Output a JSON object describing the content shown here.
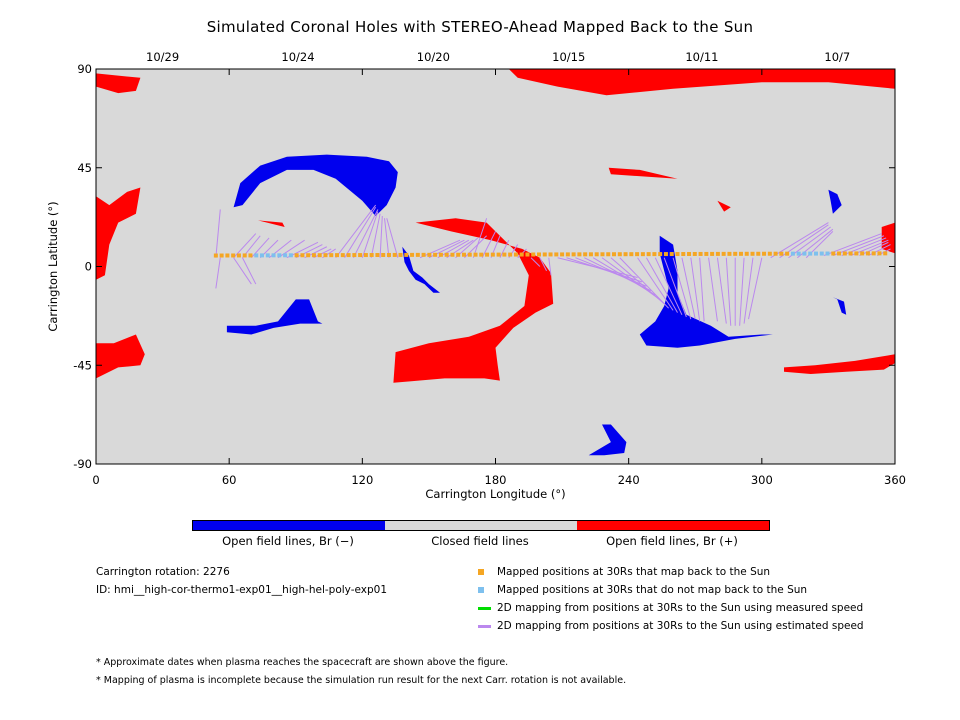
{
  "title": "Simulated Coronal Holes with STEREO-Ahead Mapped Back to the Sun",
  "colors": {
    "closed": "#d9d9d9",
    "open_positive": "#ff0000",
    "open_negative": "#0000ee",
    "mapped_back": "#f5a623",
    "not_mapped": "#7ec0ee",
    "measured_speed": "#00dd00",
    "estimated_speed": "#bb88ee"
  },
  "chart_data": {
    "type": "heatmap",
    "xlabel": "Carrington Longitude (°)",
    "ylabel": "Carrington Latitude (°)",
    "xlim": [
      0,
      360
    ],
    "ylim": [
      -90,
      90
    ],
    "x_ticks": [
      0,
      60,
      120,
      180,
      240,
      300,
      360
    ],
    "y_ticks": [
      90,
      45,
      0,
      -45,
      -90
    ],
    "top_axis": {
      "dates": [
        "10/29",
        "10/24",
        "10/20",
        "10/15",
        "10/11",
        "10/7"
      ],
      "longitudes": [
        30,
        91,
        152,
        213,
        273,
        334
      ]
    },
    "open_positive_regions": [
      [
        [
          0,
          88
        ],
        [
          20,
          86
        ],
        [
          18,
          80
        ],
        [
          10,
          79
        ],
        [
          0,
          82
        ]
      ],
      [
        [
          0,
          32
        ],
        [
          6,
          28
        ],
        [
          14,
          34
        ],
        [
          20,
          36
        ],
        [
          18,
          24
        ],
        [
          10,
          20
        ],
        [
          6,
          10
        ],
        [
          4,
          -4
        ],
        [
          0,
          -6
        ]
      ],
      [
        [
          0,
          -35
        ],
        [
          8,
          -35
        ],
        [
          18,
          -31
        ],
        [
          22,
          -40
        ],
        [
          20,
          -45
        ],
        [
          10,
          -46
        ],
        [
          0,
          -51
        ]
      ],
      [
        [
          186,
          90
        ],
        [
          360,
          90
        ],
        [
          360,
          81
        ],
        [
          330,
          84
        ],
        [
          300,
          84
        ],
        [
          260,
          81
        ],
        [
          230,
          78
        ],
        [
          208,
          82
        ],
        [
          190,
          86
        ]
      ],
      [
        [
          231,
          45
        ],
        [
          245,
          44
        ],
        [
          262,
          40
        ],
        [
          232,
          42
        ]
      ],
      [
        [
          280,
          30
        ],
        [
          286,
          27
        ],
        [
          283,
          25
        ]
      ],
      [
        [
          73,
          21
        ],
        [
          85,
          18
        ],
        [
          84,
          20
        ]
      ],
      [
        [
          144,
          20
        ],
        [
          162,
          22
        ],
        [
          176,
          20
        ],
        [
          182,
          14
        ],
        [
          190,
          6
        ],
        [
          195,
          -4
        ],
        [
          193,
          -18
        ],
        [
          182,
          -27
        ],
        [
          168,
          -32
        ],
        [
          150,
          -35
        ],
        [
          135,
          -39
        ],
        [
          134,
          -53
        ],
        [
          157,
          -51
        ],
        [
          175,
          -51
        ],
        [
          182,
          -52
        ],
        [
          181,
          -45
        ],
        [
          180,
          -37
        ],
        [
          188,
          -28
        ],
        [
          198,
          -21
        ],
        [
          206,
          -17
        ],
        [
          205,
          -3
        ],
        [
          200,
          4
        ],
        [
          192,
          8
        ],
        [
          178,
          12
        ],
        [
          160,
          16
        ]
      ],
      [
        [
          310,
          -48
        ],
        [
          322,
          -49
        ],
        [
          338,
          -48
        ],
        [
          355,
          -47
        ],
        [
          360,
          -44
        ],
        [
          360,
          -40
        ],
        [
          342,
          -43
        ],
        [
          324,
          -45
        ],
        [
          310,
          -46
        ]
      ],
      [
        [
          354,
          18
        ],
        [
          360,
          20
        ],
        [
          360,
          6
        ],
        [
          354,
          8
        ]
      ]
    ],
    "open_negative_regions": [
      [
        [
          62,
          27
        ],
        [
          65,
          38
        ],
        [
          74,
          46
        ],
        [
          86,
          50
        ],
        [
          104,
          51
        ],
        [
          122,
          50
        ],
        [
          132,
          48
        ],
        [
          136,
          43
        ],
        [
          135,
          36
        ],
        [
          131,
          28
        ],
        [
          126,
          23
        ],
        [
          120,
          30
        ],
        [
          108,
          40
        ],
        [
          98,
          44
        ],
        [
          86,
          44
        ],
        [
          74,
          38
        ],
        [
          66,
          28
        ]
      ],
      [
        [
          138,
          9
        ],
        [
          141,
          5
        ],
        [
          143,
          -2
        ],
        [
          147,
          -5
        ],
        [
          150,
          -8
        ],
        [
          155,
          -12
        ],
        [
          152,
          -12
        ],
        [
          148,
          -8
        ],
        [
          144,
          -6
        ],
        [
          141,
          -2
        ],
        [
          139,
          2
        ]
      ],
      [
        [
          59,
          -27
        ],
        [
          72,
          -27
        ],
        [
          82,
          -25
        ],
        [
          90,
          -15
        ],
        [
          96,
          -15
        ],
        [
          100,
          -25
        ],
        [
          102,
          -26
        ],
        [
          92,
          -26
        ],
        [
          80,
          -28
        ],
        [
          70,
          -31
        ],
        [
          59,
          -30
        ]
      ],
      [
        [
          254,
          14
        ],
        [
          260,
          10
        ],
        [
          262,
          -2
        ],
        [
          262,
          -12
        ],
        [
          266,
          -22
        ],
        [
          277,
          -27
        ],
        [
          285,
          -32
        ],
        [
          300,
          -31
        ],
        [
          305,
          -31
        ],
        [
          288,
          -33
        ],
        [
          272,
          -36
        ],
        [
          262,
          -37
        ],
        [
          248,
          -36
        ],
        [
          245,
          -31
        ],
        [
          252,
          -25
        ],
        [
          256,
          -18
        ],
        [
          258,
          -10
        ],
        [
          256,
          -2
        ],
        [
          254,
          6
        ]
      ],
      [
        [
          330,
          35
        ],
        [
          334,
          33
        ],
        [
          336,
          28
        ],
        [
          332,
          24
        ],
        [
          331,
          30
        ]
      ],
      [
        [
          332,
          -14
        ],
        [
          337,
          -16
        ],
        [
          338,
          -22
        ],
        [
          336,
          -21
        ],
        [
          334,
          -15
        ]
      ],
      [
        [
          228,
          -72
        ],
        [
          232,
          -72
        ],
        [
          239,
          -80
        ],
        [
          238,
          -85
        ],
        [
          229,
          -86
        ],
        [
          214,
          -86
        ],
        [
          222,
          -86
        ],
        [
          232,
          -80
        ]
      ]
    ],
    "trajectory": {
      "lat": [
        5,
        6
      ],
      "lon_start": 54,
      "lon_end": 358,
      "not_mapped_lon_ranges": [
        [
          72,
          90
        ],
        [
          312,
          330
        ]
      ]
    },
    "estimated_speed_lines": [
      [
        [
          54,
          4
        ],
        [
          56,
          26
        ]
      ],
      [
        [
          56,
          4
        ],
        [
          54,
          -10
        ]
      ],
      [
        [
          62,
          4
        ],
        [
          70,
          -8
        ]
      ],
      [
        [
          66,
          4
        ],
        [
          72,
          -8
        ]
      ],
      [
        [
          62,
          4
        ],
        [
          72,
          15
        ]
      ],
      [
        [
          66,
          4
        ],
        [
          74,
          14
        ]
      ],
      [
        [
          70,
          4
        ],
        [
          78,
          13
        ]
      ],
      [
        [
          74,
          4
        ],
        [
          82,
          12
        ]
      ],
      [
        [
          78,
          4
        ],
        [
          88,
          12
        ]
      ],
      [
        [
          82,
          4
        ],
        [
          94,
          12
        ]
      ],
      [
        [
          86,
          4
        ],
        [
          100,
          11
        ]
      ],
      [
        [
          90,
          4
        ],
        [
          102,
          10
        ]
      ],
      [
        [
          94,
          4
        ],
        [
          104,
          9
        ]
      ],
      [
        [
          98,
          4
        ],
        [
          106,
          8
        ]
      ],
      [
        [
          102,
          4
        ],
        [
          108,
          8
        ]
      ],
      [
        [
          108,
          4
        ],
        [
          126,
          28
        ]
      ],
      [
        [
          112,
          4
        ],
        [
          126,
          27
        ]
      ],
      [
        [
          116,
          4
        ],
        [
          127,
          26
        ]
      ],
      [
        [
          120,
          4
        ],
        [
          127,
          25
        ]
      ],
      [
        [
          124,
          4
        ],
        [
          128,
          24
        ]
      ],
      [
        [
          128,
          4
        ],
        [
          129,
          23
        ]
      ],
      [
        [
          132,
          4
        ],
        [
          130,
          22
        ]
      ],
      [
        [
          136,
          4
        ],
        [
          131,
          22
        ]
      ],
      [
        [
          146,
          4
        ],
        [
          164,
          12
        ]
      ],
      [
        [
          150,
          4
        ],
        [
          166,
          12
        ]
      ],
      [
        [
          154,
          4
        ],
        [
          168,
          12
        ]
      ],
      [
        [
          158,
          4
        ],
        [
          170,
          12
        ]
      ],
      [
        [
          162,
          4
        ],
        [
          172,
          13
        ]
      ],
      [
        [
          166,
          4
        ],
        [
          176,
          14
        ]
      ],
      [
        [
          170,
          4
        ],
        [
          176,
          22
        ]
      ],
      [
        [
          174,
          4
        ],
        [
          180,
          16
        ]
      ],
      [
        [
          178,
          4
        ],
        [
          182,
          14
        ]
      ],
      [
        [
          182,
          4
        ],
        [
          186,
          12
        ]
      ],
      [
        [
          186,
          4
        ],
        [
          190,
          10
        ]
      ],
      [
        [
          190,
          4
        ],
        [
          194,
          8
        ]
      ],
      [
        [
          196,
          4
        ],
        [
          200,
          0
        ]
      ],
      [
        [
          200,
          4
        ],
        [
          203,
          -2
        ]
      ],
      [
        [
          204,
          4
        ],
        [
          205,
          -4
        ]
      ],
      [
        [
          208,
          4
        ],
        [
          244,
          -5
        ]
      ],
      [
        [
          212,
          4
        ],
        [
          246,
          -7
        ]
      ],
      [
        [
          216,
          4
        ],
        [
          248,
          -9
        ]
      ],
      [
        [
          220,
          4
        ],
        [
          250,
          -11
        ]
      ],
      [
        [
          224,
          4
        ],
        [
          252,
          -13
        ]
      ],
      [
        [
          228,
          4
        ],
        [
          254,
          -15
        ]
      ],
      [
        [
          232,
          4
        ],
        [
          256,
          -17
        ]
      ],
      [
        [
          236,
          4
        ],
        [
          258,
          -19
        ]
      ],
      [
        [
          244,
          4
        ],
        [
          260,
          -20
        ]
      ],
      [
        [
          248,
          4
        ],
        [
          262,
          -21
        ]
      ],
      [
        [
          252,
          4
        ],
        [
          264,
          -22
        ]
      ],
      [
        [
          256,
          4
        ],
        [
          266,
          -23
        ]
      ],
      [
        [
          260,
          4
        ],
        [
          268,
          -24
        ]
      ],
      [
        [
          264,
          4
        ],
        [
          270,
          -24
        ]
      ],
      [
        [
          268,
          4
        ],
        [
          272,
          -25
        ]
      ],
      [
        [
          272,
          4
        ],
        [
          274,
          -25
        ]
      ],
      [
        [
          276,
          4
        ],
        [
          280,
          -25
        ]
      ],
      [
        [
          280,
          4
        ],
        [
          284,
          -26
        ]
      ],
      [
        [
          284,
          4
        ],
        [
          286,
          -27
        ]
      ],
      [
        [
          288,
          4
        ],
        [
          288,
          -27
        ]
      ],
      [
        [
          292,
          4
        ],
        [
          290,
          -27
        ]
      ],
      [
        [
          296,
          4
        ],
        [
          292,
          -26
        ]
      ],
      [
        [
          300,
          4
        ],
        [
          294,
          -24
        ]
      ],
      [
        [
          304,
          4
        ],
        [
          330,
          20
        ]
      ],
      [
        [
          308,
          4
        ],
        [
          330,
          19
        ]
      ],
      [
        [
          312,
          4
        ],
        [
          331,
          18
        ]
      ],
      [
        [
          316,
          4
        ],
        [
          332,
          17
        ]
      ],
      [
        [
          320,
          4
        ],
        [
          332,
          16
        ]
      ],
      [
        [
          328,
          5
        ],
        [
          354,
          15
        ]
      ],
      [
        [
          332,
          5
        ],
        [
          355,
          14
        ]
      ],
      [
        [
          336,
          5
        ],
        [
          356,
          13
        ]
      ],
      [
        [
          340,
          5
        ],
        [
          357,
          12
        ]
      ],
      [
        [
          344,
          5
        ],
        [
          357,
          11
        ]
      ],
      [
        [
          348,
          5
        ],
        [
          358,
          10
        ]
      ],
      [
        [
          352,
          5
        ],
        [
          358,
          8
        ]
      ]
    ]
  },
  "colorbar": {
    "labels": [
      "Open field lines, Br (−)",
      "Closed field lines",
      "Open field lines, Br (+)"
    ]
  },
  "info": {
    "rotation": "Carrington rotation: 2276",
    "id": "ID: hmi__high-cor-thermo1-exp01__high-hel-poly-exp01"
  },
  "legend": [
    {
      "label": "Mapped positions at 30Rs that map back to the Sun",
      "marker": "square",
      "color": "#f5a623"
    },
    {
      "label": "Mapped positions at 30Rs that do not map back to the Sun",
      "marker": "square",
      "color": "#7ec0ee"
    },
    {
      "label": "2D mapping from positions at 30Rs to the Sun using measured speed",
      "marker": "line",
      "color": "#00dd00"
    },
    {
      "label": "2D mapping from positions at 30Rs to the Sun using estimated speed",
      "marker": "line",
      "color": "#bb88ee"
    }
  ],
  "notes": [
    "* Approximate dates when plasma reaches the spacecraft are shown above the figure.",
    "* Mapping of plasma is incomplete because the simulation run result for the next Carr. rotation is not available."
  ]
}
